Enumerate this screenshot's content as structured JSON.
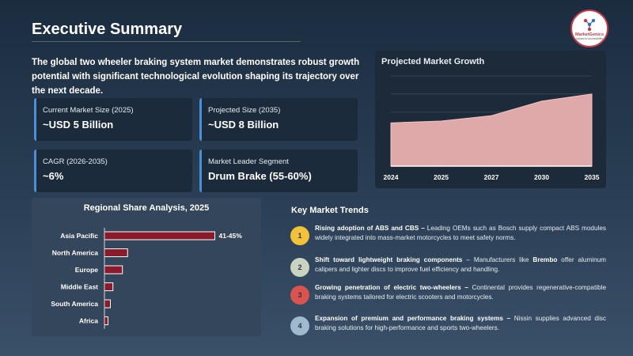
{
  "header": {
    "title": "Executive Summary",
    "logo_name": "MarketGenics",
    "logo_tagline": "Values to Accessibility"
  },
  "intro": "The global two wheeler braking system market demonstrates robust growth potential with significant technological evolution shaping its trajectory over the next decade.",
  "metrics": [
    {
      "label": "Current Market Size (2025)",
      "value": "~USD 5 Billion"
    },
    {
      "label": "Projected Size (2035)",
      "value": "~USD 8 Billion"
    },
    {
      "label": "CAGR (2026-2035)",
      "value": "~6%"
    },
    {
      "label": "Market Leader Segment",
      "value": "Drum Brake (55-60%)"
    }
  ],
  "growth": {
    "title": "Projected Market Growth"
  },
  "regional": {
    "title": "Regional Share Analysis, 2025"
  },
  "trends": {
    "title": "Key Market Trends",
    "items": [
      {
        "num": "1",
        "color": "#f2c23a",
        "head": "Rising adoption of ABS and CBS –",
        "body": " Leading OEMs such as Bosch supply compact ABS modules widely integrated into mass-market motorcycles to meet safety norms."
      },
      {
        "num": "2",
        "color": "#c9d3c2",
        "head": "Shift toward lightweight braking components",
        "body": " – Manufacturers like ",
        "brand": "Brembo",
        "tail": " offer aluminum calipers and lighter discs to improve fuel efficiency and handling."
      },
      {
        "num": "3",
        "color": "#d9534f",
        "head": "Growing penetration of electric two-wheelers –",
        "body": " Continental provides regenerative-compatible braking systems tailored for electric scooters and motorcycles."
      },
      {
        "num": "4",
        "color": "#9fb9cf",
        "head": "Expansion of premium and performance braking systems –",
        "body": " Nissin supplies advanced disc braking solutions for high-performance and sports two-wheelers."
      }
    ]
  },
  "chart_data": [
    {
      "type": "area",
      "title": "Projected Market Growth",
      "x": [
        "2024",
        "2025",
        "2027",
        "2030",
        "2035"
      ],
      "series": [
        {
          "values": [
            4.8,
            5.0,
            5.6,
            7.2,
            8.0
          ]
        }
      ],
      "ylim": [
        0,
        10
      ],
      "grid": true,
      "color": "#e0a9a9"
    },
    {
      "type": "bar",
      "orientation": "horizontal",
      "title": "Regional Share Analysis, 2025",
      "categories": [
        "Asia Pacific",
        "North America",
        "Europe",
        "Middle East",
        "South America",
        "Africa"
      ],
      "values": [
        43,
        9,
        7,
        3.3,
        2.3,
        1.4
      ],
      "data_labels": [
        "41-45%",
        "",
        "",
        "",
        "",
        ""
      ],
      "xlim": [
        0,
        45
      ],
      "color": "#8b1a2b"
    }
  ]
}
